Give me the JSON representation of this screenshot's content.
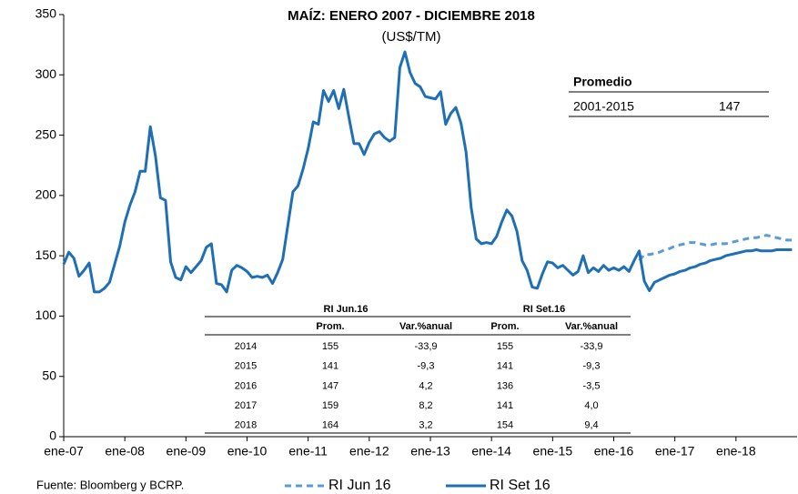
{
  "chart_data": {
    "type": "line",
    "title": "MAÍZ: ENERO 2007 - DICIEMBRE 2018",
    "subtitle": "(US$/TM)",
    "categories": [
      "ene-07",
      null,
      null,
      null,
      null,
      null,
      null,
      null,
      null,
      null,
      null,
      null,
      "ene-08",
      null,
      null,
      null,
      null,
      null,
      null,
      null,
      null,
      null,
      null,
      null,
      "ene-09",
      null,
      null,
      null,
      null,
      null,
      null,
      null,
      null,
      null,
      null,
      null,
      "ene-10",
      null,
      null,
      null,
      null,
      null,
      null,
      null,
      null,
      null,
      null,
      null,
      "ene-11",
      null,
      null,
      null,
      null,
      null,
      null,
      null,
      null,
      null,
      null,
      null,
      "ene-12",
      null,
      null,
      null,
      null,
      null,
      null,
      null,
      null,
      null,
      null,
      null,
      "ene-13",
      null,
      null,
      null,
      null,
      null,
      null,
      null,
      null,
      null,
      null,
      null,
      "ene-14",
      null,
      null,
      null,
      null,
      null,
      null,
      null,
      null,
      null,
      null,
      null,
      "ene-15",
      null,
      null,
      null,
      null,
      null,
      null,
      null,
      null,
      null,
      null,
      null,
      "ene-16",
      null,
      null,
      null,
      null,
      null,
      null,
      null,
      null,
      null,
      null,
      null,
      "ene-17",
      null,
      null,
      null,
      null,
      null,
      null,
      null,
      null,
      null,
      null,
      null,
      "ene-18",
      null,
      null,
      null,
      null,
      null,
      null,
      null,
      null,
      null,
      null,
      null
    ],
    "series": [
      {
        "name": "RI Jun 16",
        "color": "#5b9bd5",
        "dash": true,
        "values": [
          null,
          null,
          null,
          null,
          null,
          null,
          null,
          null,
          null,
          null,
          null,
          null,
          null,
          null,
          null,
          null,
          null,
          null,
          null,
          null,
          null,
          null,
          null,
          null,
          null,
          null,
          null,
          null,
          null,
          null,
          null,
          null,
          null,
          null,
          null,
          null,
          null,
          null,
          null,
          null,
          null,
          null,
          null,
          null,
          null,
          null,
          null,
          null,
          null,
          null,
          null,
          null,
          null,
          null,
          null,
          null,
          null,
          null,
          null,
          null,
          null,
          null,
          null,
          null,
          null,
          null,
          null,
          null,
          null,
          null,
          null,
          null,
          null,
          null,
          null,
          null,
          null,
          null,
          null,
          null,
          null,
          null,
          null,
          null,
          null,
          null,
          null,
          null,
          null,
          null,
          null,
          null,
          null,
          null,
          null,
          null,
          null,
          null,
          null,
          null,
          null,
          null,
          null,
          null,
          null,
          null,
          null,
          null,
          null,
          null,
          null,
          null,
          null,
          146,
          151,
          151,
          152,
          153,
          155,
          156,
          158,
          159,
          160,
          161,
          161,
          160,
          159,
          159,
          160,
          160,
          160,
          161,
          162,
          163,
          164,
          165,
          165,
          166,
          167,
          166,
          165,
          164,
          163,
          163
        ]
      },
      {
        "name": "RI Set 16",
        "color": "#1f6fb5",
        "dash": false,
        "values": [
          143,
          153,
          148,
          133,
          138,
          144,
          120,
          120,
          123,
          128,
          143,
          158,
          178,
          192,
          203,
          220,
          220,
          257,
          233,
          198,
          196,
          145,
          132,
          130,
          141,
          136,
          141,
          146,
          157,
          160,
          127,
          126,
          120,
          138,
          142,
          140,
          137,
          132,
          133,
          132,
          134,
          127,
          136,
          147,
          175,
          203,
          208,
          222,
          239,
          261,
          259,
          287,
          278,
          287,
          272,
          288,
          265,
          243,
          243,
          234,
          244,
          251,
          253,
          248,
          245,
          248,
          306,
          319,
          302,
          293,
          290,
          282,
          281,
          280,
          286,
          259,
          268,
          273,
          260,
          236,
          190,
          164,
          160,
          161,
          160,
          166,
          178,
          188,
          183,
          170,
          146,
          138,
          124,
          123,
          135,
          145,
          144,
          140,
          142,
          138,
          134,
          137,
          150,
          136,
          140,
          137,
          142,
          138,
          140,
          138,
          141,
          137,
          146,
          154,
          129,
          121,
          128,
          130,
          132,
          134,
          135,
          137,
          138,
          140,
          141,
          143,
          144,
          146,
          147,
          148,
          150,
          151,
          152,
          153,
          154,
          154,
          155,
          154,
          154,
          154,
          155,
          155,
          155,
          155
        ]
      }
    ],
    "ylim": [
      0,
      350
    ],
    "yticks": [
      0,
      50,
      100,
      150,
      200,
      250,
      300,
      350
    ]
  },
  "summary_table": {
    "title": "Promedio",
    "rows": [
      [
        "2001-2015",
        "147"
      ]
    ]
  },
  "table": {
    "groups": [
      "RI Jun.16",
      "RI Set.16"
    ],
    "columns": [
      "Prom.",
      "Var.%anual",
      "Prom.",
      "Var.%anual"
    ],
    "rows": [
      [
        "2014",
        "155",
        "-33,9",
        "155",
        "-33,9"
      ],
      [
        "2015",
        "141",
        "-9,3",
        "141",
        "-9,3"
      ],
      [
        "2016",
        "147",
        "4,2",
        "136",
        "-3,5"
      ],
      [
        "2017",
        "159",
        "8,2",
        "141",
        "4,0"
      ],
      [
        "2018",
        "164",
        "3,2",
        "154",
        "9,4"
      ]
    ]
  },
  "source": "Fuente: Bloomberg y BCRP."
}
